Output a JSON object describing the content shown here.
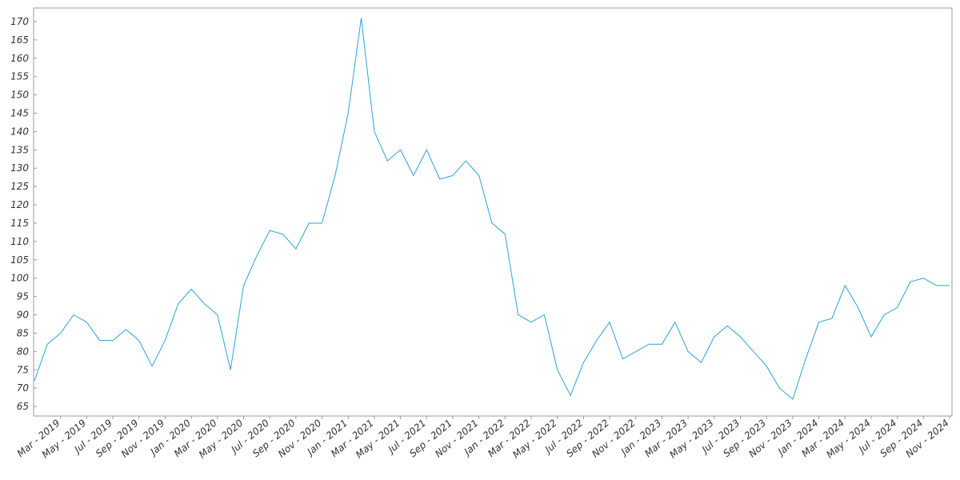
{
  "chart_data": {
    "type": "line",
    "x": [
      "2019-01",
      "2019-02",
      "2019-03",
      "2019-04",
      "2019-05",
      "2019-06",
      "2019-07",
      "2019-08",
      "2019-09",
      "2019-10",
      "2019-11",
      "2019-12",
      "2020-01",
      "2020-02",
      "2020-03",
      "2020-04",
      "2020-05",
      "2020-06",
      "2020-07",
      "2020-08",
      "2020-09",
      "2020-10",
      "2020-11",
      "2020-12",
      "2021-01",
      "2021-02",
      "2021-03",
      "2021-04",
      "2021-05",
      "2021-06",
      "2021-07",
      "2021-08",
      "2021-09",
      "2021-10",
      "2021-11",
      "2021-12",
      "2022-01",
      "2022-02",
      "2022-03",
      "2022-04",
      "2022-05",
      "2022-06",
      "2022-07",
      "2022-08",
      "2022-09",
      "2022-10",
      "2022-11",
      "2022-12",
      "2023-01",
      "2023-02",
      "2023-03",
      "2023-04",
      "2023-05",
      "2023-06",
      "2023-07",
      "2023-08",
      "2023-09",
      "2023-10",
      "2023-11",
      "2023-12",
      "2024-01",
      "2024-02",
      "2024-03",
      "2024-04",
      "2024-05",
      "2024-06",
      "2024-07",
      "2024-08",
      "2024-09",
      "2024-10",
      "2024-11"
    ],
    "series": [
      {
        "color": "#2ba3d9",
        "values": [
          72,
          82,
          85,
          90,
          88,
          83,
          83,
          86,
          83,
          76,
          83,
          93,
          97,
          93,
          90,
          75,
          98,
          106,
          113,
          112,
          108,
          115,
          115,
          128,
          145,
          171,
          140,
          132,
          135,
          128,
          135,
          127,
          128,
          132,
          128,
          115,
          112,
          90,
          88,
          90,
          75,
          68,
          77,
          83,
          88,
          78,
          80,
          82,
          82,
          88,
          80,
          77,
          84,
          87,
          84,
          80,
          76,
          70,
          67,
          78,
          88,
          89,
          98,
          92,
          84,
          90,
          92,
          99,
          100,
          98,
          98
        ]
      }
    ],
    "xlim": [
      "2019-01",
      "2024-11"
    ],
    "xticks": [
      {
        "value": "2019-03",
        "label": "Mar - 2019"
      },
      {
        "value": "2019-05",
        "label": "May - 2019"
      },
      {
        "value": "2019-07",
        "label": "Jul - 2019"
      },
      {
        "value": "2019-09",
        "label": "Sep - 2019"
      },
      {
        "value": "2019-11",
        "label": "Nov - 2019"
      },
      {
        "value": "2020-01",
        "label": "Jan - 2020"
      },
      {
        "value": "2020-03",
        "label": "Mar - 2020"
      },
      {
        "value": "2020-05",
        "label": "May - 2020"
      },
      {
        "value": "2020-07",
        "label": "Jul - 2020"
      },
      {
        "value": "2020-09",
        "label": "Sep - 2020"
      },
      {
        "value": "2020-11",
        "label": "Nov - 2020"
      },
      {
        "value": "2021-01",
        "label": "Jan - 2021"
      },
      {
        "value": "2021-03",
        "label": "Mar - 2021"
      },
      {
        "value": "2021-05",
        "label": "May - 2021"
      },
      {
        "value": "2021-07",
        "label": "Jul - 2021"
      },
      {
        "value": "2021-09",
        "label": "Sep - 2021"
      },
      {
        "value": "2021-11",
        "label": "Nov - 2021"
      },
      {
        "value": "2022-01",
        "label": "Jan - 2022"
      },
      {
        "value": "2022-03",
        "label": "Mar - 2022"
      },
      {
        "value": "2022-05",
        "label": "May - 2022"
      },
      {
        "value": "2022-07",
        "label": "Jul - 2022"
      },
      {
        "value": "2022-09",
        "label": "Sep - 2022"
      },
      {
        "value": "2022-11",
        "label": "Nov - 2022"
      },
      {
        "value": "2023-01",
        "label": "Jan - 2023"
      },
      {
        "value": "2023-03",
        "label": "Mar - 2023"
      },
      {
        "value": "2023-05",
        "label": "May - 2023"
      },
      {
        "value": "2023-07",
        "label": "Jul - 2023"
      },
      {
        "value": "2023-09",
        "label": "Sep - 2023"
      },
      {
        "value": "2023-11",
        "label": "Nov - 2023"
      },
      {
        "value": "2024-01",
        "label": "Jan - 2024"
      },
      {
        "value": "2024-03",
        "label": "Mar - 2024"
      },
      {
        "value": "2024-05",
        "label": "May - 2024"
      },
      {
        "value": "2024-07",
        "label": "Jul - 2024"
      },
      {
        "value": "2024-09",
        "label": "Sep - 2024"
      },
      {
        "value": "2024-11",
        "label": "Nov - 2024"
      }
    ],
    "ylim": [
      62.4,
      173.7
    ],
    "yticks": [
      65,
      70,
      75,
      80,
      85,
      90,
      95,
      100,
      105,
      110,
      115,
      120,
      125,
      130,
      135,
      140,
      145,
      150,
      155,
      160,
      165,
      170
    ]
  }
}
